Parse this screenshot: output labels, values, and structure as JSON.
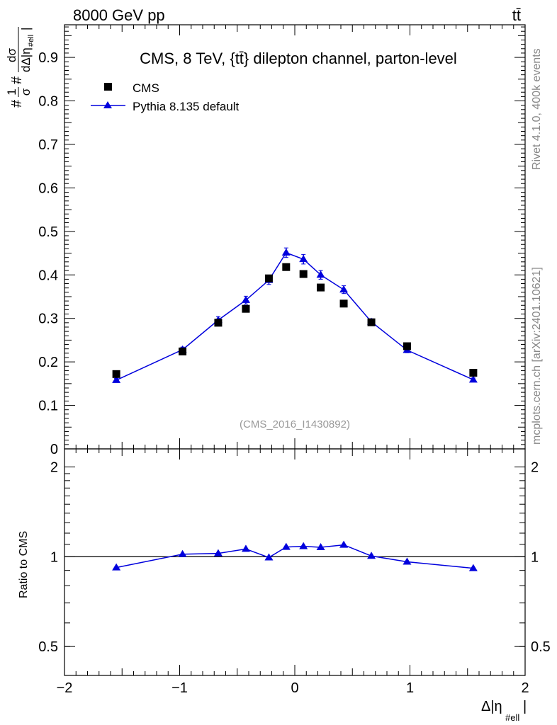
{
  "header": {
    "energy_label": "8000 GeV pp",
    "process_label": "tt̄"
  },
  "side_labels": {
    "rivet": "Rivet 4.1.0,  400k events",
    "mcplots": "mcplots.cern.ch [arXiv:2401.10621]"
  },
  "chart_data": [
    {
      "type": "scatter",
      "panel": "main",
      "title": "CMS, 8 TeV, {tt̄} dilepton channel, parton-level",
      "watermark": "(CMS_2016_I1430892)",
      "ylabel_parts": {
        "prefix": "#",
        "num": "1",
        "den": "σ",
        "mid": "#",
        "dnum": "dσ",
        "dden": "dΔ|η",
        "sub": "#ell",
        "close": "|"
      },
      "xlabel_parts": {
        "main": "Δ|η",
        "sub": "#ell",
        "close": "|"
      },
      "xlim": [
        -2,
        2
      ],
      "ylim": [
        0,
        0.975
      ],
      "ytick_labels": [
        "0",
        "0.1",
        "0.2",
        "0.3",
        "0.4",
        "0.5",
        "0.6",
        "0.7",
        "0.8",
        "0.9"
      ],
      "x": [
        -1.55,
        -0.975,
        -0.665,
        -0.425,
        -0.225,
        -0.075,
        0.075,
        0.225,
        0.425,
        0.665,
        0.975,
        1.55
      ],
      "series": [
        {
          "name": "CMS",
          "marker": "square",
          "color": "#000000",
          "values": [
            0.172,
            0.224,
            0.29,
            0.322,
            0.392,
            0.418,
            0.402,
            0.371,
            0.334,
            0.291,
            0.236,
            0.175
          ],
          "errors": [
            0.004,
            0.004,
            0.004,
            0.004,
            0.004,
            0.004,
            0.004,
            0.004,
            0.004,
            0.004,
            0.004,
            0.004
          ]
        },
        {
          "name": "Pythia 8.135 default",
          "marker": "triangle",
          "color": "#0000dd",
          "values": [
            0.158,
            0.228,
            0.296,
            0.342,
            0.388,
            0.451,
            0.436,
            0.4,
            0.366,
            0.292,
            0.227,
            0.159
          ],
          "errors": [
            0.004,
            0.006,
            0.008,
            0.009,
            0.01,
            0.011,
            0.011,
            0.01,
            0.009,
            0.007,
            0.006,
            0.004
          ]
        }
      ],
      "legend_position": "top-left"
    },
    {
      "type": "line",
      "panel": "ratio",
      "ylabel": "Ratio to CMS",
      "xlim": [
        -2,
        2
      ],
      "ylim": [
        0.4,
        2.3
      ],
      "yscale": "log",
      "ytick_labels": [
        "0.5",
        "1",
        "2"
      ],
      "xtick_labels": [
        "−2",
        "−1",
        "0",
        "1",
        "2"
      ],
      "x": [
        -1.55,
        -0.975,
        -0.665,
        -0.425,
        -0.225,
        -0.075,
        0.075,
        0.225,
        0.425,
        0.665,
        0.975,
        1.55
      ],
      "series": [
        {
          "name": "Pythia 8.135 default / CMS",
          "color": "#0000dd",
          "values": [
            0.92,
            1.02,
            1.026,
            1.062,
            0.994,
            1.078,
            1.084,
            1.076,
            1.096,
            1.006,
            0.962,
            0.915
          ],
          "errors": [
            0.01,
            0.015,
            0.018,
            0.02,
            0.014,
            0.02,
            0.02,
            0.018,
            0.02,
            0.015,
            0.014,
            0.01
          ]
        }
      ],
      "reference_line": 1
    }
  ]
}
